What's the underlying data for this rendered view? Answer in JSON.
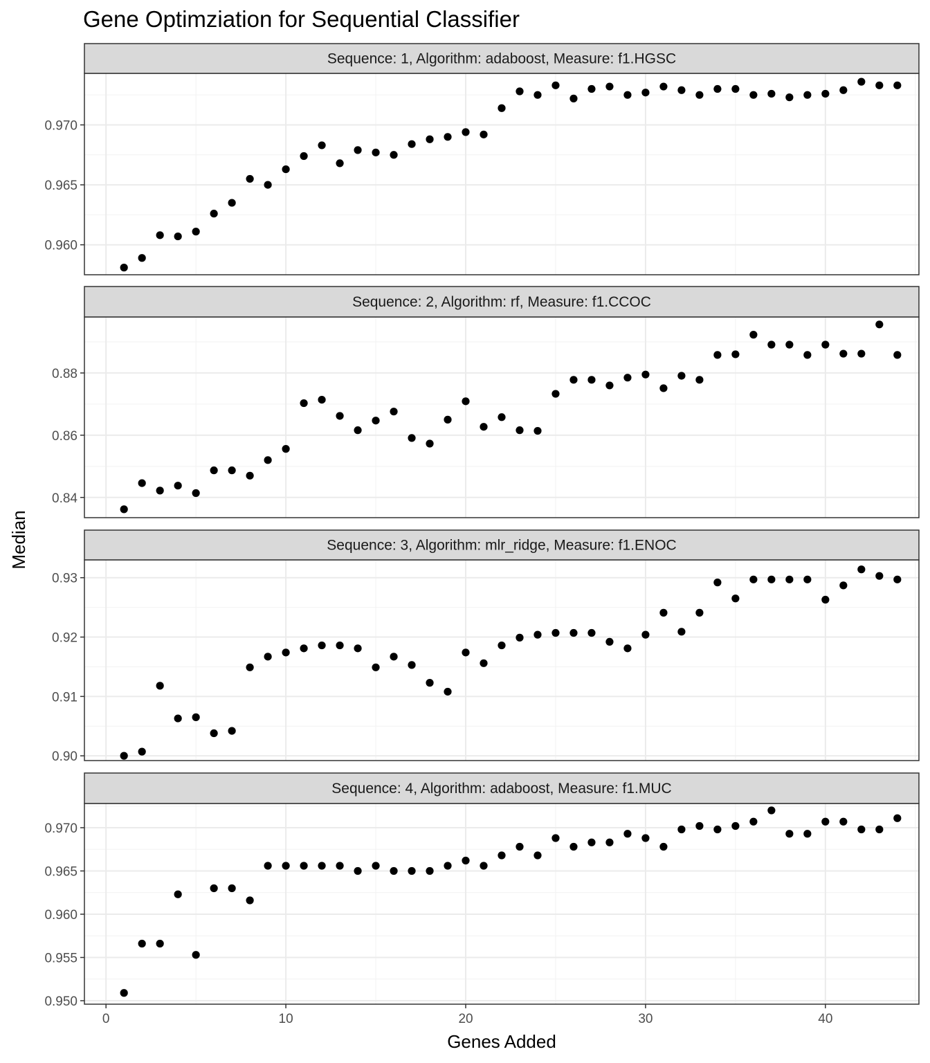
{
  "chart_data": {
    "type": "scatter",
    "title": "Gene Optimziation for Sequential Classifier",
    "xlabel": "Genes Added",
    "ylabel": "Median",
    "xlim": [
      -1.2,
      45.2
    ],
    "x_ticks": [
      0,
      10,
      20,
      30,
      40
    ],
    "x_tick_labels": [
      "0",
      "10",
      "20",
      "30",
      "40"
    ],
    "grid": true,
    "panels": [
      {
        "strip": "Sequence: 1, Algorithm: adaboost, Measure: f1.HGSC",
        "ylim": [
          0.9575,
          0.9743
        ],
        "y_ticks": [
          0.96,
          0.965,
          0.97
        ],
        "y_tick_labels": [
          "0.960",
          "0.965",
          "0.970"
        ],
        "x": [
          1,
          2,
          3,
          4,
          5,
          6,
          7,
          8,
          9,
          10,
          11,
          12,
          13,
          14,
          15,
          16,
          17,
          18,
          19,
          20,
          21,
          22,
          23,
          24,
          25,
          26,
          27,
          28,
          29,
          30,
          31,
          32,
          33,
          34,
          35,
          36,
          37,
          38,
          39,
          40,
          41,
          42,
          43,
          44
        ],
        "y": [
          0.9581,
          0.9589,
          0.9608,
          0.9607,
          0.9611,
          0.9626,
          0.9635,
          0.9655,
          0.965,
          0.9663,
          0.9674,
          0.9683,
          0.9668,
          0.9679,
          0.9677,
          0.9675,
          0.9684,
          0.9688,
          0.969,
          0.9694,
          0.9692,
          0.9714,
          0.9728,
          0.9725,
          0.9733,
          0.9722,
          0.973,
          0.9732,
          0.9725,
          0.9727,
          0.9732,
          0.9729,
          0.9725,
          0.973,
          0.973,
          0.9725,
          0.9726,
          0.9723,
          0.9725,
          0.9726,
          0.9729,
          0.9736,
          0.9733,
          0.9733
        ]
      },
      {
        "strip": "Sequence: 2, Algorithm: rf, Measure: f1.CCOC",
        "ylim": [
          0.8335,
          0.898
        ],
        "y_ticks": [
          0.84,
          0.86,
          0.88
        ],
        "y_tick_labels": [
          "0.84",
          "0.86",
          "0.88"
        ],
        "x": [
          1,
          2,
          3,
          4,
          5,
          6,
          7,
          8,
          9,
          10,
          11,
          12,
          13,
          14,
          15,
          16,
          17,
          18,
          19,
          20,
          21,
          22,
          23,
          24,
          25,
          26,
          27,
          28,
          29,
          30,
          31,
          32,
          33,
          34,
          35,
          36,
          37,
          38,
          39,
          40,
          41,
          42,
          43,
          44
        ],
        "y": [
          0.8362,
          0.8446,
          0.8422,
          0.8438,
          0.8414,
          0.8487,
          0.8487,
          0.847,
          0.852,
          0.8556,
          0.8703,
          0.8714,
          0.8662,
          0.8616,
          0.8647,
          0.8676,
          0.8591,
          0.8573,
          0.865,
          0.8709,
          0.8627,
          0.8658,
          0.8616,
          0.8614,
          0.8733,
          0.8778,
          0.8778,
          0.876,
          0.8785,
          0.8795,
          0.8751,
          0.8791,
          0.8778,
          0.8858,
          0.886,
          0.8923,
          0.8891,
          0.8891,
          0.8858,
          0.8891,
          0.8862,
          0.8862,
          0.8956,
          0.8858
        ]
      },
      {
        "strip": "Sequence: 3, Algorithm: mlr_ridge, Measure: f1.ENOC",
        "ylim": [
          0.8992,
          0.933
        ],
        "y_ticks": [
          0.9,
          0.91,
          0.92,
          0.93
        ],
        "y_tick_labels": [
          "0.90",
          "0.91",
          "0.92",
          "0.93"
        ],
        "x": [
          1,
          2,
          3,
          4,
          5,
          6,
          7,
          8,
          9,
          10,
          11,
          12,
          13,
          14,
          15,
          16,
          17,
          18,
          19,
          20,
          21,
          22,
          23,
          24,
          25,
          26,
          27,
          28,
          29,
          30,
          31,
          32,
          33,
          34,
          35,
          36,
          37,
          38,
          39,
          40,
          41,
          42,
          43,
          44
        ],
        "y": [
          0.9,
          0.9007,
          0.9118,
          0.9063,
          0.9065,
          0.9038,
          0.9042,
          0.9149,
          0.9167,
          0.9174,
          0.9181,
          0.9186,
          0.9186,
          0.9181,
          0.9149,
          0.9167,
          0.9153,
          0.9123,
          0.9108,
          0.9174,
          0.9156,
          0.9186,
          0.9199,
          0.9204,
          0.9207,
          0.9207,
          0.9207,
          0.9192,
          0.9181,
          0.9204,
          0.9241,
          0.9209,
          0.9241,
          0.9292,
          0.9265,
          0.9297,
          0.9297,
          0.9297,
          0.9297,
          0.9263,
          0.9287,
          0.9314,
          0.9303,
          0.9297
        ]
      },
      {
        "strip": "Sequence: 4, Algorithm: adaboost, Measure: f1.MUC",
        "ylim": [
          0.9496,
          0.9728
        ],
        "y_ticks": [
          0.95,
          0.955,
          0.96,
          0.965,
          0.97
        ],
        "y_tick_labels": [
          "0.950",
          "0.955",
          "0.960",
          "0.965",
          "0.970"
        ],
        "x": [
          1,
          2,
          3,
          4,
          5,
          6,
          7,
          8,
          9,
          10,
          11,
          12,
          13,
          14,
          15,
          16,
          17,
          18,
          19,
          20,
          21,
          22,
          23,
          24,
          25,
          26,
          27,
          28,
          29,
          30,
          31,
          32,
          33,
          34,
          35,
          36,
          37,
          38,
          39,
          40,
          41,
          42,
          43,
          44
        ],
        "y": [
          0.9509,
          0.9566,
          0.9566,
          0.9623,
          0.9553,
          0.963,
          0.963,
          0.9616,
          0.9656,
          0.9656,
          0.9656,
          0.9656,
          0.9656,
          0.965,
          0.9656,
          0.965,
          0.965,
          0.965,
          0.9656,
          0.9662,
          0.9656,
          0.9668,
          0.9678,
          0.9668,
          0.9688,
          0.9678,
          0.9683,
          0.9683,
          0.9693,
          0.9688,
          0.9678,
          0.9698,
          0.9702,
          0.9698,
          0.9702,
          0.9707,
          0.972,
          0.9693,
          0.9693,
          0.9707,
          0.9707,
          0.9698,
          0.9698,
          0.9711
        ]
      }
    ]
  }
}
